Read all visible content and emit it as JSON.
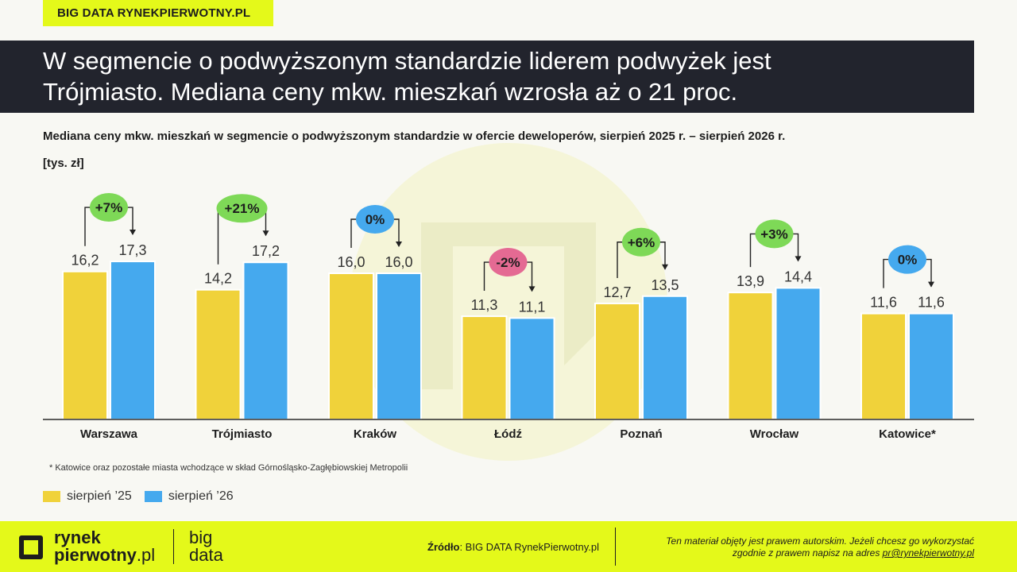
{
  "brand_tag": "BIG DATA RYNEKPIERWOTNY.PL",
  "title_line1": "W segmencie o podwyższonym standardzie liderem podwyżek jest",
  "title_line2": "Trójmiasto. Mediana ceny mkw. mieszkań wzrosła aż o 21 proc.",
  "footnote": "* Katowice oraz pozostałe miasta wchodzące w skład Górnośląsko-Zagłębiowskiej Metropolii",
  "legend": [
    {
      "label": "sierpień ’25",
      "color": "#f0d23a"
    },
    {
      "label": "sierpień ’26",
      "color": "#45a9ee"
    }
  ],
  "footer": {
    "logo_line1": "rynek",
    "logo_line2_bold": "pierwotny",
    "logo_line2_light": ".pl",
    "logo_big_line1": "big",
    "logo_big_line2": "data",
    "source_label": "Źródło",
    "source_text": ": BIG DATA RynekPierwotny.pl",
    "copyright_line1": "Ten materiał objęty jest prawem autorskim. Jeżeli chcesz go wykorzystać",
    "copyright_line2": "zgodnie z prawem napisz na adres ",
    "copyright_email": "pr@rynekpierwotny.pl"
  },
  "chart_data": {
    "type": "bar",
    "title": "Mediana ceny mkw. mieszkań w segmencie o podwyższonym standardzie w ofercie deweloperów, sierpień 2025 r. – sierpień 2026 r.",
    "ylabel": "[tys. zł]",
    "categories": [
      "Warszawa",
      "Trójmiasto",
      "Kraków",
      "Łódź",
      "Poznań",
      "Wrocław",
      "Katowice*"
    ],
    "series": [
      {
        "name": "sierpień ’25",
        "color": "#f0d23a",
        "values": [
          16.2,
          14.2,
          16.0,
          11.3,
          12.7,
          13.9,
          11.6
        ],
        "labels": [
          "16,2",
          "14,2",
          "16,0",
          "11,3",
          "12,7",
          "13,9",
          "11,6"
        ]
      },
      {
        "name": "sierpień ’26",
        "color": "#45a9ee",
        "values": [
          17.3,
          17.2,
          16.0,
          11.1,
          13.5,
          14.4,
          11.6
        ],
        "labels": [
          "17,3",
          "17,2",
          "16,0",
          "11,1",
          "13,5",
          "14,4",
          "11,6"
        ]
      }
    ],
    "changes": [
      {
        "label": "+7%",
        "color": "#7ed957"
      },
      {
        "label": "+21%",
        "color": "#7ed957"
      },
      {
        "label": "0%",
        "color": "#45a9ee"
      },
      {
        "label": "-2%",
        "color": "#e46a93"
      },
      {
        "label": "+6%",
        "color": "#7ed957"
      },
      {
        "label": "+3%",
        "color": "#7ed957"
      },
      {
        "label": "0%",
        "color": "#45a9ee"
      }
    ],
    "ylim": [
      0,
      17.3
    ],
    "grid": false,
    "legend": "bottom-left"
  }
}
